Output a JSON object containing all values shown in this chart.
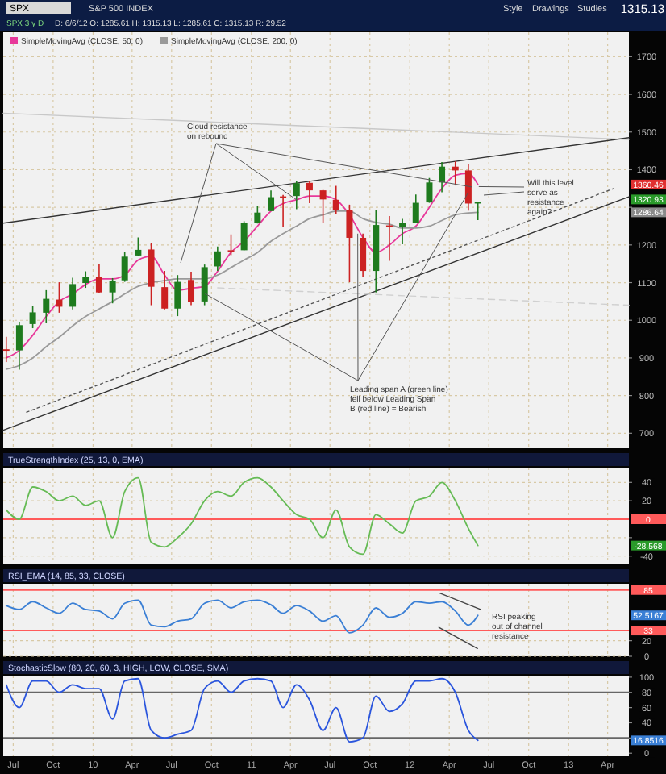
{
  "chart_data": [
    {
      "type": "candlestick",
      "title": "S&P 500 INDEX",
      "subtitle": "SPX 3 y D",
      "x": [
        "2009-06-15",
        "2009-07-15",
        "2009-08-15",
        "2009-09-15",
        "2009-10-15",
        "2009-11-15",
        "2009-12-15",
        "2010-01-15",
        "2010-02-15",
        "2010-03-15",
        "2010-04-15",
        "2010-05-15",
        "2010-06-15",
        "2010-07-15",
        "2010-08-15",
        "2010-09-15",
        "2010-10-15",
        "2010-11-15",
        "2010-12-15",
        "2011-01-15",
        "2011-02-15",
        "2011-03-15",
        "2011-04-15",
        "2011-05-15",
        "2011-06-15",
        "2011-07-15",
        "2011-08-15",
        "2011-09-15",
        "2011-10-15",
        "2011-11-15",
        "2011-12-15",
        "2012-01-15",
        "2012-02-15",
        "2012-03-15",
        "2012-04-15",
        "2012-05-15",
        "2012-06-06"
      ],
      "ohlc": [
        [
          923,
          956,
          889,
          919
        ],
        [
          920,
          996,
          869,
          987
        ],
        [
          990,
          1039,
          979,
          1021
        ],
        [
          1020,
          1080,
          992,
          1057
        ],
        [
          1055,
          1101,
          1020,
          1036
        ],
        [
          1036,
          1113,
          1029,
          1096
        ],
        [
          1099,
          1130,
          1086,
          1115
        ],
        [
          1116,
          1150,
          1071,
          1074
        ],
        [
          1074,
          1112,
          1045,
          1104
        ],
        [
          1106,
          1181,
          1102,
          1169
        ],
        [
          1172,
          1220,
          1171,
          1187
        ],
        [
          1188,
          1205,
          1040,
          1089
        ],
        [
          1088,
          1131,
          1029,
          1031
        ],
        [
          1031,
          1120,
          1011,
          1102
        ],
        [
          1107,
          1129,
          1040,
          1049
        ],
        [
          1050,
          1148,
          1040,
          1141
        ],
        [
          1143,
          1196,
          1131,
          1183
        ],
        [
          1186,
          1228,
          1173,
          1181
        ],
        [
          1186,
          1263,
          1186,
          1258
        ],
        [
          1258,
          1303,
          1257,
          1286
        ],
        [
          1290,
          1345,
          1290,
          1327
        ],
        [
          1329,
          1333,
          1249,
          1326
        ],
        [
          1330,
          1370,
          1295,
          1364
        ],
        [
          1365,
          1370,
          1311,
          1345
        ],
        [
          1345,
          1346,
          1258,
          1321
        ],
        [
          1320,
          1357,
          1282,
          1292
        ],
        [
          1292,
          1307,
          1101,
          1219
        ],
        [
          1219,
          1230,
          1115,
          1131
        ],
        [
          1131,
          1293,
          1074,
          1253
        ],
        [
          1252,
          1277,
          1158,
          1247
        ],
        [
          1247,
          1269,
          1202,
          1258
        ],
        [
          1258,
          1334,
          1258,
          1312
        ],
        [
          1313,
          1378,
          1312,
          1366
        ],
        [
          1366,
          1420,
          1340,
          1408
        ],
        [
          1408,
          1422,
          1358,
          1398
        ],
        [
          1398,
          1416,
          1291,
          1310
        ],
        [
          1310,
          1315,
          1266,
          1315
        ]
      ],
      "series": [
        {
          "name": "SimpleMovingAvg (CLOSE, 50, 0)",
          "type": "line",
          "color": "#e8389a",
          "values": [
            900,
            920,
            960,
            1010,
            1050,
            1070,
            1095,
            1110,
            1110,
            1120,
            1160,
            1170,
            1120,
            1080,
            1085,
            1090,
            1130,
            1180,
            1210,
            1250,
            1290,
            1310,
            1320,
            1330,
            1330,
            1320,
            1280,
            1220,
            1180,
            1200,
            1230,
            1250,
            1300,
            1350,
            1385,
            1390,
            1360.46
          ]
        },
        {
          "name": "SimpleMovingAvg (CLOSE, 200, 0)",
          "type": "line",
          "color": "#9a9a9a",
          "values": [
            870,
            880,
            900,
            930,
            955,
            985,
            1010,
            1030,
            1050,
            1070,
            1090,
            1100,
            1105,
            1110,
            1110,
            1110,
            1120,
            1140,
            1160,
            1180,
            1210,
            1230,
            1250,
            1270,
            1280,
            1290,
            1290,
            1270,
            1260,
            1255,
            1245,
            1245,
            1250,
            1265,
            1280,
            1285,
            1286.64
          ]
        },
        {
          "type": "line",
          "color": "#333333",
          "x": [
            "2009-06-08",
            "2013-05-20"
          ],
          "values": [
            708,
            1328
          ]
        },
        {
          "type": "line",
          "color": "#555555",
          "line_style": "dotted",
          "x": [
            "2009-08-01",
            "2013-04-15"
          ],
          "values": [
            756,
            1350
          ]
        },
        {
          "type": "line",
          "color": "#333333",
          "x": [
            "2009-06-08",
            "2013-05-20"
          ],
          "values": [
            1258,
            1485
          ]
        },
        {
          "type": "line",
          "color": "#c8c8c8",
          "x": [
            "2009-06-08",
            "2013-05-20"
          ],
          "values": [
            1550,
            1480
          ]
        },
        {
          "type": "line",
          "color": "#d0d0d0",
          "line_style": "dashed",
          "x": [
            "2010-10-15",
            "2013-05-20"
          ],
          "values": [
            1086,
            1040
          ]
        }
      ],
      "xlim": [
        "2009-06-08",
        "2013-05-20"
      ],
      "xticks": [
        {
          "value": "2009-07-01",
          "label": null
        },
        {
          "value": "2009-10-01",
          "label": null
        },
        {
          "value": "2010-01-01",
          "label": null
        },
        {
          "value": "2010-04-01",
          "label": null
        },
        {
          "value": "2010-07-01",
          "label": null
        },
        {
          "value": "2010-10-01",
          "label": null
        },
        {
          "value": "2011-01-01",
          "label": null
        },
        {
          "value": "2011-04-01",
          "label": null
        },
        {
          "value": "2011-07-01",
          "label": null
        },
        {
          "value": "2011-10-01",
          "label": null
        },
        {
          "value": "2012-01-01",
          "label": null
        },
        {
          "value": "2012-04-01",
          "label": null
        },
        {
          "value": "2012-07-01",
          "label": null
        },
        {
          "value": "2012-10-01",
          "label": null
        },
        {
          "value": "2013-01-01",
          "label": null
        },
        {
          "value": "2013-04-01",
          "label": null
        }
      ],
      "ylim": [
        660,
        1765
      ],
      "yticks": [
        700,
        800,
        900,
        1000,
        1100,
        1200,
        {
          "value": 1300,
          "label": null
        },
        1400,
        1500,
        1600,
        1700
      ],
      "grid": true,
      "legend": "top left",
      "tick_labels": "y",
      "annotations": [
        "SPX",
        "Style",
        "Drawings",
        "Studies",
        "1315.13",
        "D: 6/6/12  O: 1285.61  H: 1315.13  L: 1285.61  C: 1315.13  R: 29.52",
        {
          "text": "Cloud resistance on rebound",
          "x": "2011-04-15",
          "y": 1320
        },
        {
          "text": "Will this level serve as resistance again?",
          "x": "2012-06-08",
          "y": 1355
        },
        {
          "text": "Leading span A (green line) fell below Leading Span B (red line) = Bearish",
          "x": "2011-09-03",
          "y": 1230
        },
        "1360.46",
        "1320.93",
        "1286.64"
      ]
    },
    {
      "type": "line",
      "title": "TrueStrengthIndex (25, 13, 0, EMA)",
      "x": [
        "2009-06-15",
        "2009-07-15",
        "2009-08-15",
        "2009-09-15",
        "2009-10-15",
        "2009-11-15",
        "2009-12-15",
        "2010-01-15",
        "2010-02-15",
        "2010-03-15",
        "2010-04-15",
        "2010-05-15",
        "2010-06-15",
        "2010-07-15",
        "2010-08-15",
        "2010-09-15",
        "2010-10-15",
        "2010-11-15",
        "2010-12-15",
        "2011-01-15",
        "2011-02-15",
        "2011-03-15",
        "2011-04-15",
        "2011-05-15",
        "2011-06-15",
        "2011-07-15",
        "2011-08-15",
        "2011-09-15",
        "2011-10-15",
        "2011-11-15",
        "2011-12-15",
        "2012-01-15",
        "2012-02-15",
        "2012-03-15",
        "2012-04-15",
        "2012-05-15",
        "2012-06-06"
      ],
      "series": [
        {
          "color": "#66bb55",
          "values": [
            10,
            0,
            35,
            30,
            20,
            25,
            15,
            20,
            -20,
            30,
            45,
            -25,
            -30,
            -20,
            -5,
            20,
            30,
            25,
            40,
            45,
            35,
            20,
            5,
            0,
            -20,
            10,
            -30,
            -38,
            5,
            -5,
            -15,
            20,
            25,
            40,
            20,
            -10,
            -28.568
          ]
        }
      ],
      "xlim": [
        "2009-06-08",
        "2013-05-20"
      ],
      "xticks": [
        {
          "value": "2009-07-01",
          "label": null
        },
        {
          "value": "2009-10-01",
          "label": null
        },
        {
          "value": "2010-01-01",
          "label": null
        },
        {
          "value": "2010-04-01",
          "label": null
        },
        {
          "value": "2010-07-01",
          "label": null
        },
        {
          "value": "2010-10-01",
          "label": null
        },
        {
          "value": "2011-01-01",
          "label": null
        },
        {
          "value": "2011-04-01",
          "label": null
        },
        {
          "value": "2011-07-01",
          "label": null
        },
        {
          "value": "2011-10-01",
          "label": null
        },
        {
          "value": "2012-01-01",
          "label": null
        },
        {
          "value": "2012-04-01",
          "label": null
        },
        {
          "value": "2012-07-01",
          "label": null
        },
        {
          "value": "2012-10-01",
          "label": null
        },
        {
          "value": "2013-01-01",
          "label": null
        },
        {
          "value": "2013-04-01",
          "label": null
        }
      ],
      "ylim": [
        -49,
        56
      ],
      "yticks": [
        -40,
        {
          "value": -20,
          "label": null
        },
        20,
        40
      ],
      "grid": true,
      "tick_labels": "y",
      "ref_lines": [
        {
          "axis": "y",
          "value": 0,
          "label": "0",
          "color": "#ff5a5a"
        }
      ],
      "annotations": [
        "-28.568"
      ]
    },
    {
      "type": "line",
      "title": "RSI_EMA (14, 85, 33, CLOSE)",
      "x": [
        "2009-06-15",
        "2009-07-15",
        "2009-08-15",
        "2009-09-15",
        "2009-10-15",
        "2009-11-15",
        "2009-12-15",
        "2010-01-15",
        "2010-02-15",
        "2010-03-15",
        "2010-04-15",
        "2010-05-15",
        "2010-06-15",
        "2010-07-15",
        "2010-08-15",
        "2010-09-15",
        "2010-10-15",
        "2010-11-15",
        "2010-12-15",
        "2011-01-15",
        "2011-02-15",
        "2011-03-15",
        "2011-04-15",
        "2011-05-15",
        "2011-06-15",
        "2011-07-15",
        "2011-08-15",
        "2011-09-15",
        "2011-10-15",
        "2011-11-15",
        "2011-12-15",
        "2012-01-15",
        "2012-02-15",
        "2012-03-15",
        "2012-04-15",
        "2012-05-15",
        "2012-06-06"
      ],
      "series": [
        {
          "color": "#3a7fd5",
          "values": [
            65,
            60,
            70,
            62,
            55,
            68,
            60,
            58,
            48,
            68,
            72,
            40,
            38,
            45,
            48,
            68,
            72,
            62,
            70,
            72,
            66,
            55,
            65,
            58,
            45,
            52,
            30,
            40,
            62,
            50,
            55,
            70,
            68,
            70,
            58,
            40,
            52.5167
          ]
        },
        {
          "type": "line",
          "color": "#444444",
          "x": [
            "2012-03-10",
            "2012-06-12"
          ],
          "values": [
            81,
            60
          ]
        },
        {
          "type": "line",
          "color": "#444444",
          "x": [
            "2012-03-08",
            "2012-06-05"
          ],
          "values": [
            37,
            10
          ]
        }
      ],
      "xlim": [
        "2009-06-08",
        "2013-05-20"
      ],
      "xticks": [
        {
          "value": "2009-07-01",
          "label": null
        },
        {
          "value": "2009-10-01",
          "label": null
        },
        {
          "value": "2010-01-01",
          "label": null
        },
        {
          "value": "2010-04-01",
          "label": null
        },
        {
          "value": "2010-07-01",
          "label": null
        },
        {
          "value": "2010-10-01",
          "label": null
        },
        {
          "value": "2011-01-01",
          "label": null
        },
        {
          "value": "2011-04-01",
          "label": null
        },
        {
          "value": "2011-07-01",
          "label": null
        },
        {
          "value": "2011-10-01",
          "label": null
        },
        {
          "value": "2012-01-01",
          "label": null
        },
        {
          "value": "2012-04-01",
          "label": null
        },
        {
          "value": "2012-07-01",
          "label": null
        },
        {
          "value": "2012-10-01",
          "label": null
        },
        {
          "value": "2013-01-01",
          "label": null
        },
        {
          "value": "2013-04-01",
          "label": null
        }
      ],
      "ylim": [
        0,
        93
      ],
      "yticks": [
        0,
        20
      ],
      "grid": true,
      "tick_labels": "y",
      "ref_lines": [
        {
          "axis": "y",
          "value": 85,
          "label": "85",
          "color": "#ff5a5a"
        },
        {
          "axis": "y",
          "value": 33,
          "label": "33",
          "color": "#ff5a5a"
        }
      ],
      "annotations": [
        "RSI peaking out of channel resistance",
        "52.5167"
      ]
    },
    {
      "type": "line",
      "title": "StochasticSlow (80, 20, 60, 3, HIGH, LOW, CLOSE, SMA)",
      "x": [
        "2009-06-15",
        "2009-07-15",
        "2009-08-15",
        "2009-09-15",
        "2009-10-15",
        "2009-11-15",
        "2009-12-15",
        "2010-01-15",
        "2010-02-15",
        "2010-03-15",
        "2010-04-15",
        "2010-05-15",
        "2010-06-15",
        "2010-07-15",
        "2010-08-15",
        "2010-09-15",
        "2010-10-15",
        "2010-11-15",
        "2010-12-15",
        "2011-01-15",
        "2011-02-15",
        "2011-03-15",
        "2011-04-15",
        "2011-05-15",
        "2011-06-15",
        "2011-07-15",
        "2011-08-15",
        "2011-09-15",
        "2011-10-15",
        "2011-11-15",
        "2011-12-15",
        "2012-01-15",
        "2012-02-15",
        "2012-03-15",
        "2012-04-15",
        "2012-05-15",
        "2012-06-06"
      ],
      "series": [
        {
          "color": "#2a55dd",
          "values": [
            90,
            60,
            95,
            95,
            80,
            90,
            85,
            85,
            45,
            95,
            98,
            30,
            20,
            25,
            30,
            85,
            95,
            80,
            95,
            98,
            95,
            60,
            90,
            70,
            30,
            60,
            15,
            20,
            75,
            55,
            65,
            95,
            95,
            98,
            80,
            30,
            16.8516
          ]
        }
      ],
      "xlim": [
        "2009-06-08",
        "2013-05-20"
      ],
      "xticks": [
        {
          "value": "2009-07-01",
          "label": "Jul"
        },
        {
          "value": "2009-10-01",
          "label": "Oct"
        },
        {
          "value": "2010-01-01",
          "label": "10"
        },
        {
          "value": "2010-04-01",
          "label": "Apr"
        },
        {
          "value": "2010-07-01",
          "label": "Jul"
        },
        {
          "value": "2010-10-01",
          "label": "Oct"
        },
        {
          "value": "2011-01-01",
          "label": "11"
        },
        {
          "value": "2011-04-01",
          "label": "Apr"
        },
        {
          "value": "2011-07-01",
          "label": "Jul"
        },
        {
          "value": "2011-10-01",
          "label": "Oct"
        },
        {
          "value": "2012-01-01",
          "label": "12"
        },
        {
          "value": "2012-04-01",
          "label": "Apr"
        },
        {
          "value": "2012-07-01",
          "label": "Jul"
        },
        {
          "value": "2012-10-01",
          "label": "Oct"
        },
        {
          "value": "2013-01-01",
          "label": "13"
        },
        {
          "value": "2013-04-01",
          "label": "Apr"
        }
      ],
      "ylim": [
        -4,
        102
      ],
      "yticks": [
        0,
        {
          "value": 20,
          "label": null
        },
        40,
        60,
        80,
        100
      ],
      "grid": "x",
      "ref_lines": [
        {
          "axis": "y",
          "value": 80,
          "color": "#666666"
        },
        {
          "axis": "y",
          "value": 20,
          "color": "#666666"
        }
      ],
      "annotations": [
        "16.8516"
      ]
    }
  ]
}
